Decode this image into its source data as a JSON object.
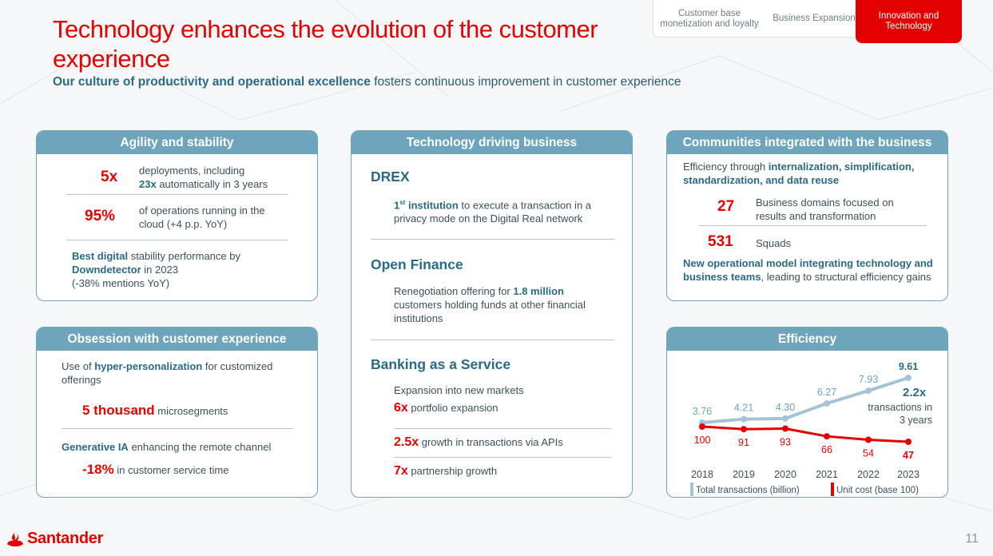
{
  "header": {
    "title": "Technology enhances the evolution of the customer experience",
    "subtitle_bold": "Our culture of productivity and operational excellence",
    "subtitle_rest": " fosters continuous improvement in customer experience"
  },
  "tabs": [
    {
      "label": "Customer base monetization and loyalty",
      "active": false
    },
    {
      "label": "Business Expansion",
      "active": false
    },
    {
      "label": "Innovation and Technology",
      "active": true
    }
  ],
  "agility": {
    "title": "Agility and stability",
    "m1_value": "5x",
    "m1_text_a": "deployments, including",
    "m1_text_b": "23x",
    "m1_text_c": " automatically in 3 years",
    "m2_value": "95%",
    "m2_text": "of operations running in the cloud (+4 p.p. YoY)",
    "note_b1": "Best digital",
    "note_t1": " stability performance by ",
    "note_b2": "Downdetector",
    "note_t2": " in 2023",
    "note_t3": "(-38% mentions YoY)"
  },
  "obsession": {
    "title": "Obsession with customer experience",
    "p1_a": "Use of ",
    "p1_b": "hyper-personalization",
    "p1_c": " for customized offerings",
    "m1_value": "5 thousand",
    "m1_text": " microsegments",
    "p2_b": "Generative IA",
    "p2_c": " enhancing the remote channel",
    "m2_value": "-18%",
    "m2_text": " in customer service time"
  },
  "tech": {
    "title": "Technology driving business",
    "drex_title": "DREX",
    "drex_b": "1",
    "drex_sup": "st",
    "drex_b2": " institution",
    "drex_t": " to execute a transaction in a privacy mode on the Digital Real network",
    "of_title": "Open Finance",
    "of_t1": "Renegotiation offering for ",
    "of_b": "1.8 million",
    "of_t2": " customers holding funds at other financial institutions",
    "baas_title": "Banking as a Service",
    "baas_intro": "Expansion into new markets",
    "baas1_v": "6x",
    "baas1_t": " portfolio expansion",
    "baas2_v": "2.5x",
    "baas2_t": " growth in transactions via APIs",
    "baas3_v": "7x",
    "baas3_t": " partnership growth"
  },
  "communities": {
    "title": "Communities integrated with the business",
    "intro_t": "Efficiency through ",
    "intro_b": "internalization, simplification, standardization, and data reuse",
    "m1_value": "27",
    "m1_text": "Business domains focused on results and transformation",
    "m2_value": "531",
    "m2_text": "Squads",
    "note_b": "New operational model integrating technology and business teams",
    "note_t": ", leading to structural efficiency gains"
  },
  "efficiency": {
    "title": "Efficiency",
    "multiplier": "2.2x",
    "multiplier_note": "transactions in 3 years"
  },
  "chart_data": {
    "type": "line",
    "x": [
      "2018",
      "2019",
      "2020",
      "2021",
      "2022",
      "2023"
    ],
    "series": [
      {
        "name": "Total transactions (billion)",
        "values": [
          3.76,
          4.21,
          4.3,
          6.27,
          7.93,
          9.61
        ],
        "labels": [
          "3.76",
          "4.21",
          "4.30",
          "6.27",
          "7.93",
          "9.61"
        ],
        "color": "#a5c3d2"
      },
      {
        "name": "Unit cost (base 100)",
        "values": [
          100,
          91,
          93,
          66,
          54,
          47
        ],
        "labels": [
          "100",
          "91",
          "93",
          "66",
          "54",
          "47"
        ],
        "color": "#e20000"
      }
    ],
    "legend": "bottom",
    "grid": false
  },
  "footer": {
    "brand": "Santander",
    "page": "11"
  },
  "colors": {
    "red": "#e20000",
    "teal": "#6ea5bd",
    "dark_teal": "#2a6a84"
  }
}
